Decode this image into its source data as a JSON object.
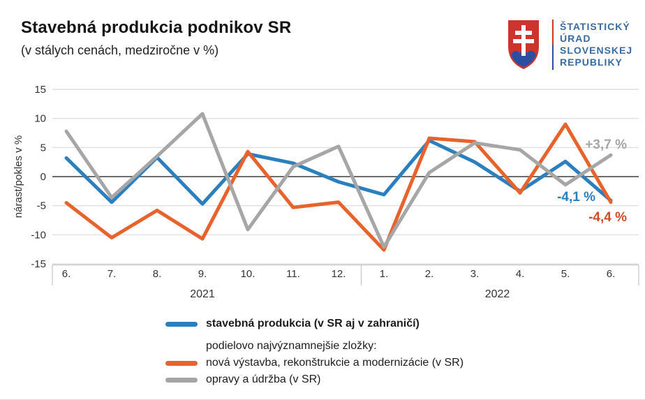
{
  "header": {
    "title": "Stavebná produkcia podnikov SR",
    "subtitle": "(v stálych cenách, medziročne v %)"
  },
  "logo": {
    "org_line1": "ŠTATISTICKÝ",
    "org_line2": "ÚRAD",
    "org_line3": "SLOVENSKEJ",
    "org_line4": "REPUBLIKY",
    "emblem": "slovak-coat-of-arms",
    "text_color": "#3a6b9f",
    "emblem_red": "#cd342e",
    "emblem_blue": "#2b4f9e"
  },
  "chart_data": {
    "type": "line",
    "ylabel": "nárast/pokles v %",
    "ylim": [
      -15,
      15
    ],
    "yticks": [
      15,
      10,
      5,
      0,
      -5,
      -10,
      -15
    ],
    "grid": "horizontal",
    "categories": [
      "6.",
      "7.",
      "8.",
      "9.",
      "10.",
      "11.",
      "12.",
      "1.",
      "2.",
      "3.",
      "4.",
      "5.",
      "6."
    ],
    "year_groups": [
      {
        "label": "2021",
        "from": 0,
        "to": 6
      },
      {
        "label": "2022",
        "from": 7,
        "to": 12
      }
    ],
    "series": [
      {
        "name": "stavebná produkcia (v SR aj v zahraničí)",
        "color": "#2b7fbe",
        "values": [
          3.2,
          -4.4,
          3.3,
          -4.7,
          3.9,
          2.3,
          -0.9,
          -3.1,
          6.2,
          2.5,
          -2.5,
          2.6,
          -4.1
        ]
      },
      {
        "name": "nová výstavba, rekonštrukcie a modernizácie (v SR)",
        "color": "#e8632c",
        "values": [
          -4.5,
          -10.5,
          -5.8,
          -10.7,
          4.3,
          -5.3,
          -4.4,
          -12.6,
          6.6,
          6.0,
          -2.8,
          9.0,
          -4.4
        ]
      },
      {
        "name": "opravy a údržba (v SR)",
        "color": "#a6a6a6",
        "values": [
          7.8,
          -3.6,
          3.5,
          10.8,
          -9.1,
          1.7,
          5.2,
          -12.1,
          0.7,
          5.8,
          4.6,
          -1.4,
          3.7
        ]
      }
    ],
    "annotations": [
      {
        "text": "+3,7 %",
        "color": "#a6a6a6",
        "series": "opravy a údržba (v SR)"
      },
      {
        "text": "-4,1 %",
        "color": "#2b7fbe",
        "series": "stavebná produkcia (v SR aj v zahraničí)"
      },
      {
        "text": "-4,4 %",
        "color": "#d04a29",
        "series": "nová výstavba, rekonštrukcie a modernizácie (v SR)"
      }
    ],
    "legend_note": "podielovo najvýznamnejšie zložky:",
    "legend_position": "bottom"
  }
}
